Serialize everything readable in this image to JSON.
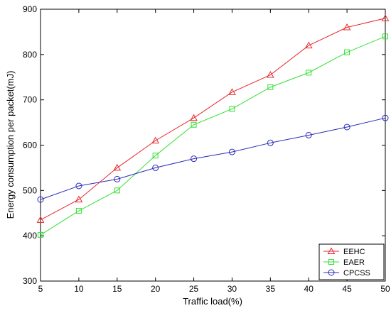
{
  "chart_data": {
    "type": "line",
    "xlabel": "Traffic load(%)",
    "ylabel": "Energy consumption per packet(mJ)",
    "xlim": [
      5,
      50
    ],
    "ylim": [
      300,
      900
    ],
    "x": [
      5,
      10,
      15,
      20,
      25,
      30,
      35,
      40,
      45,
      50
    ],
    "xticks": [
      "5",
      "10",
      "15",
      "20",
      "25",
      "30",
      "35",
      "40",
      "45",
      "50"
    ],
    "yticks": [
      "300",
      "400",
      "500",
      "600",
      "700",
      "800",
      "900"
    ],
    "grid": false,
    "legend_position": "bottom-right",
    "series": [
      {
        "name": "EEHC",
        "color": "#e8262a",
        "marker": "triangle",
        "values": [
          435,
          480,
          550,
          610,
          660,
          717,
          755,
          820,
          860,
          880
        ]
      },
      {
        "name": "EAER",
        "color": "#32e032",
        "marker": "square",
        "values": [
          402,
          455,
          500,
          577,
          645,
          680,
          728,
          760,
          805,
          840
        ]
      },
      {
        "name": "CPCSS",
        "color": "#2a2ab8",
        "marker": "circle",
        "values": [
          480,
          510,
          525,
          550,
          570,
          585,
          605,
          622,
          640,
          660
        ]
      }
    ]
  }
}
